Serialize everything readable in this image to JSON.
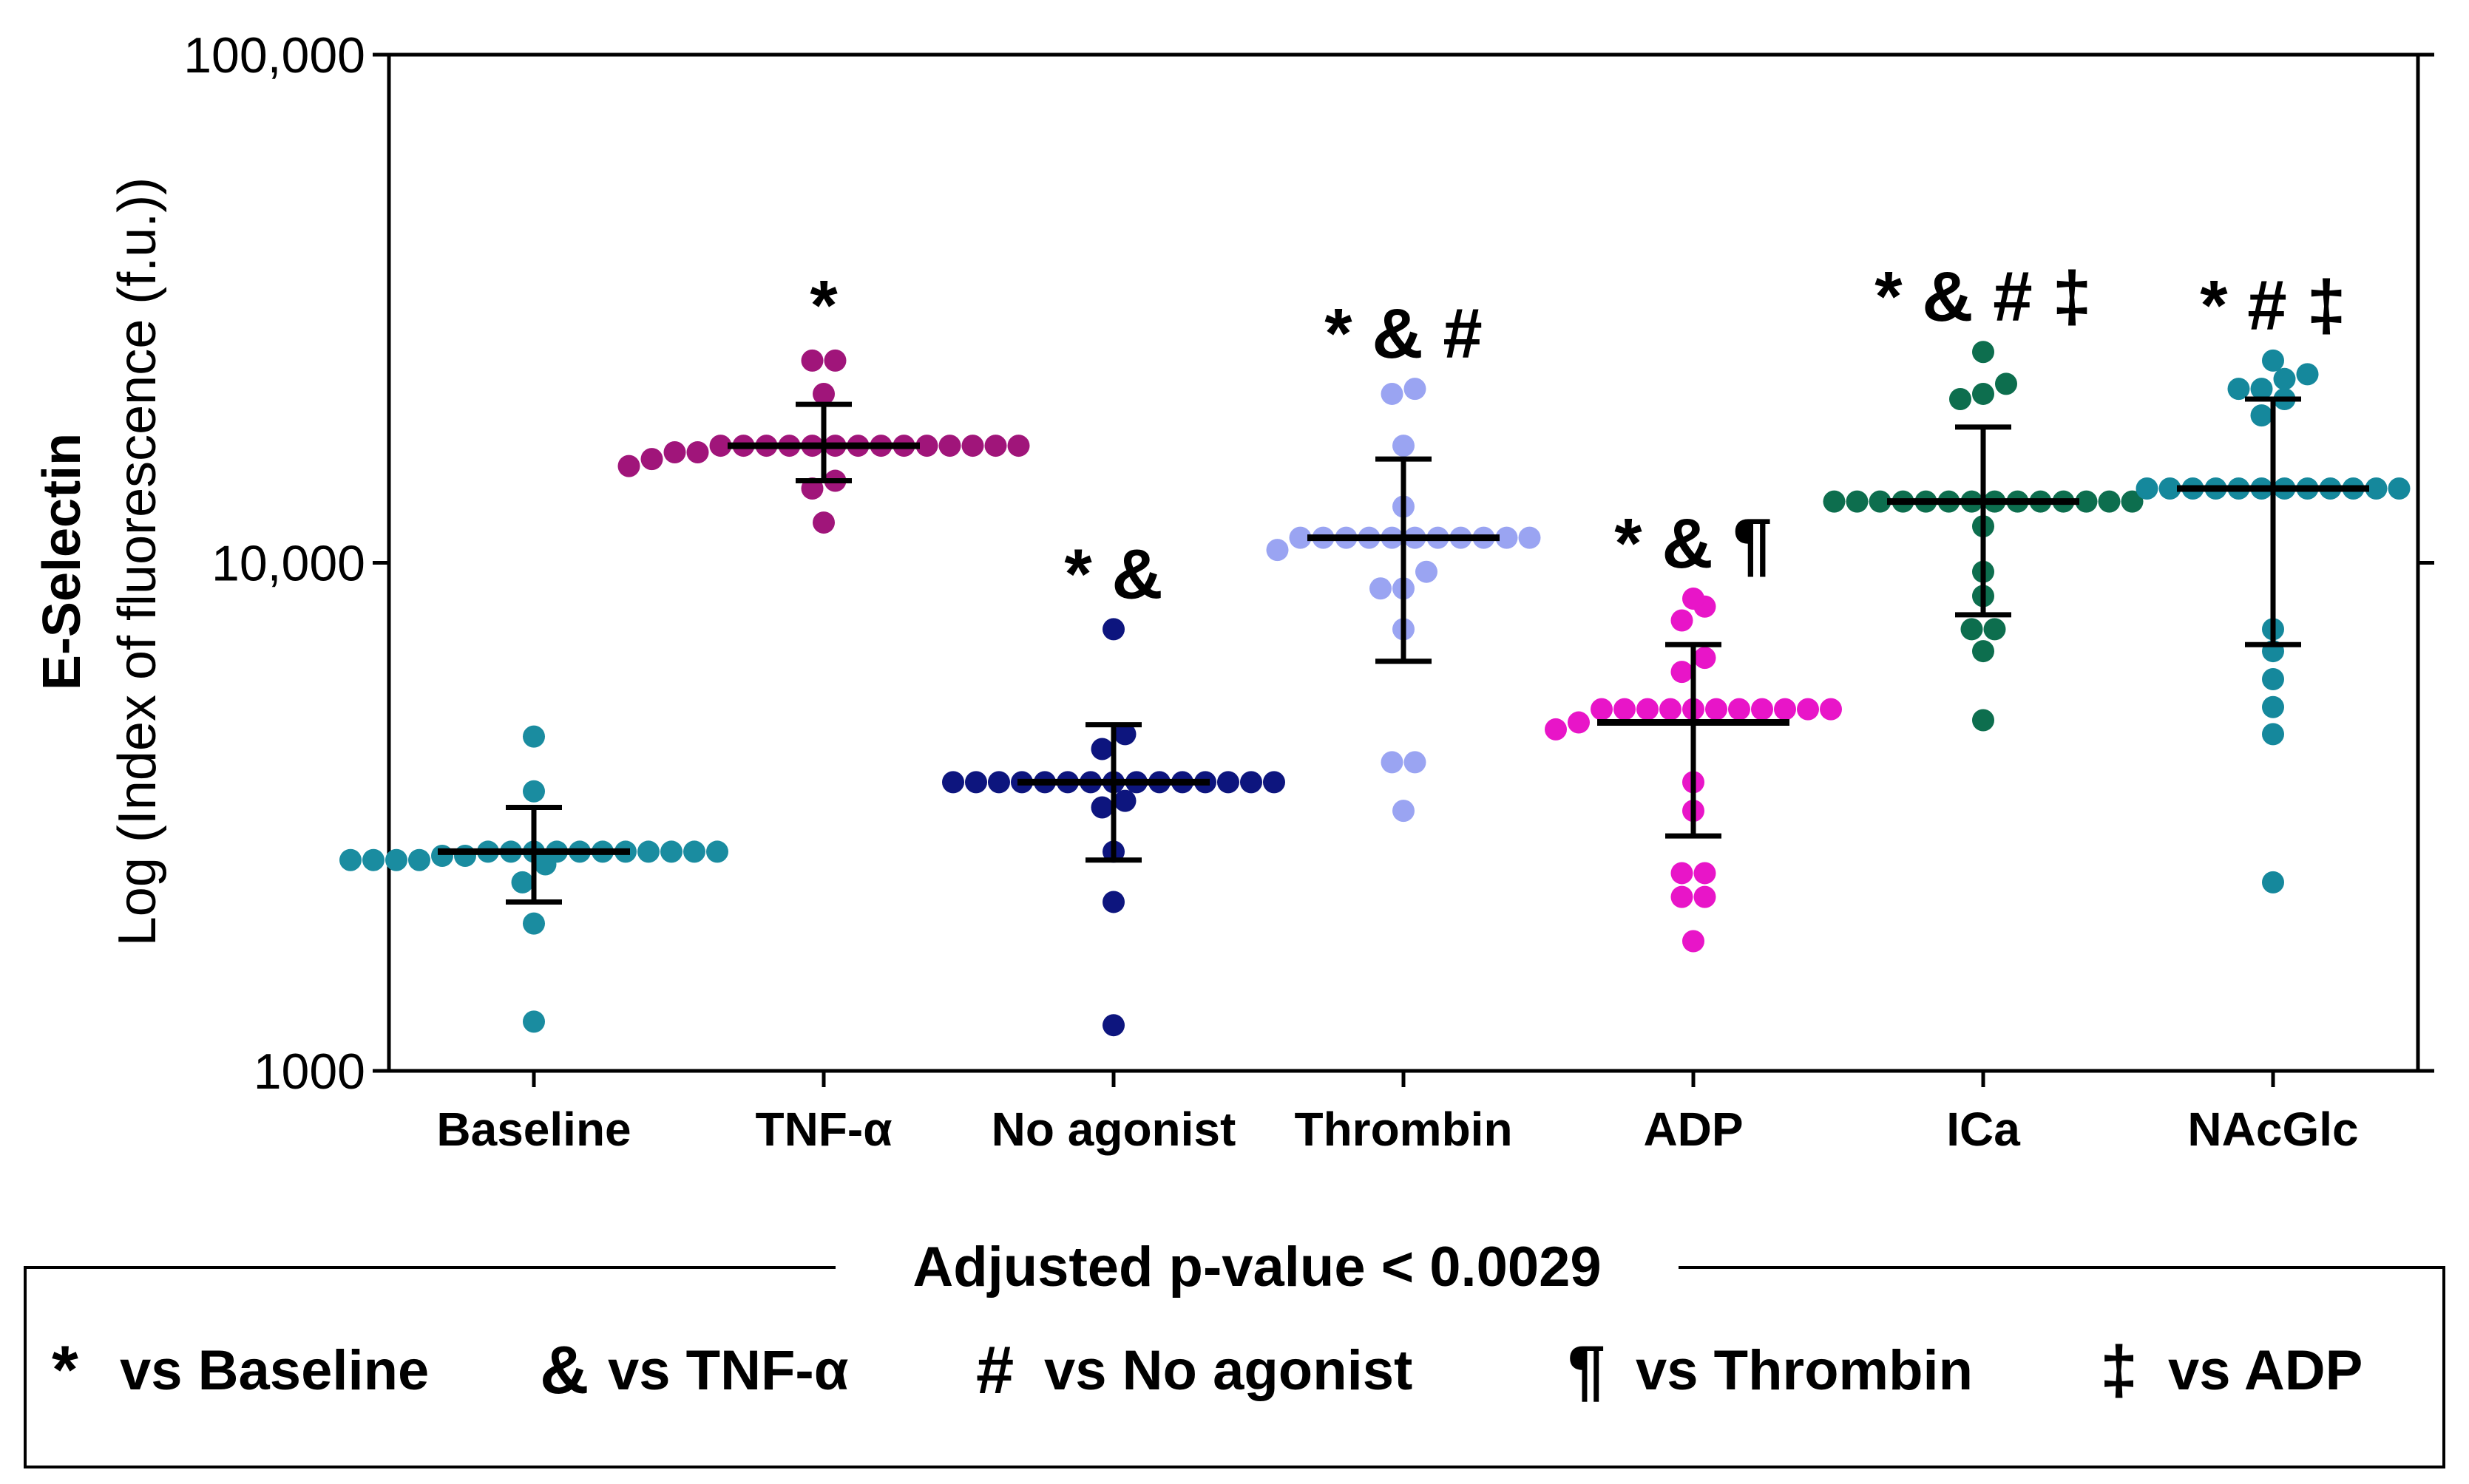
{
  "chart_data": {
    "type": "scatter",
    "subtype": "dot-plot-with-mean-and-sd",
    "title": "",
    "ylabel_bold": "E-Selectin",
    "ylabel": "Log (Index of fluorescence (f.u.))",
    "xlabel": "",
    "yscale": "log",
    "ylim": [
      1000,
      100000
    ],
    "yticks": [
      {
        "value": 1000,
        "label": "1000"
      },
      {
        "value": 10000,
        "label": "10,000"
      },
      {
        "value": 100000,
        "label": "100,000"
      }
    ],
    "categories": [
      "Baseline",
      "TNF-α",
      "No agonist",
      "Thrombin",
      "ADP",
      "ICa",
      "NAcGlc"
    ],
    "series": [
      {
        "name": "Baseline",
        "color": "#1a8ca0",
        "mean": 2700,
        "sd_low": 2150,
        "sd_high": 3300,
        "significance": "",
        "points": [
          1250,
          1950,
          2350,
          2550,
          2600,
          2600,
          2600,
          2600,
          2650,
          2650,
          2700,
          2700,
          2700,
          2700,
          2700,
          2700,
          2700,
          2700,
          2700,
          2700,
          2700,
          3550,
          4550
        ]
      },
      {
        "name": "TNF-α",
        "color": "#a0157a",
        "mean": 17000,
        "sd_low": 14500,
        "sd_high": 20500,
        "significance": "*",
        "points": [
          12000,
          14000,
          14500,
          15500,
          16000,
          16500,
          16500,
          17000,
          17000,
          17000,
          17000,
          17000,
          17000,
          17000,
          17000,
          17000,
          17000,
          17000,
          17000,
          17000,
          17000,
          21500,
          25000,
          25000
        ]
      },
      {
        "name": "No agonist",
        "color": "#0d157e",
        "mean": 3700,
        "sd_low": 2600,
        "sd_high": 4800,
        "significance": "* &",
        "points": [
          1230,
          2150,
          2700,
          3300,
          3400,
          3700,
          3700,
          3700,
          3700,
          3700,
          3700,
          3700,
          3700,
          3700,
          3700,
          3700,
          3700,
          3700,
          3700,
          3700,
          4300,
          4600,
          7400
        ]
      },
      {
        "name": "Thrombin",
        "color": "#9aa4f2",
        "mean": 11200,
        "sd_low": 6400,
        "sd_high": 16000,
        "significance": "* & #",
        "points": [
          3250,
          4050,
          4050,
          7400,
          8900,
          8900,
          9600,
          10600,
          11200,
          11200,
          11200,
          11200,
          11200,
          11200,
          11200,
          11200,
          11200,
          11200,
          11200,
          12900,
          17000,
          21500,
          22000
        ]
      },
      {
        "name": "ADP",
        "color": "#e815c8",
        "mean": 4850,
        "sd_low": 2900,
        "sd_high": 6900,
        "significance": "* & ¶",
        "points": [
          1800,
          2200,
          2200,
          2450,
          2450,
          3250,
          3700,
          4700,
          4850,
          5150,
          5150,
          5150,
          5150,
          5150,
          5150,
          5150,
          5150,
          5150,
          5150,
          5150,
          6100,
          6500,
          7700,
          8200,
          8500
        ]
      },
      {
        "name": "ICa",
        "color": "#0d6e4e",
        "mean": 13200,
        "sd_low": 7900,
        "sd_high": 18500,
        "significance": "* & # ‡",
        "points": [
          4900,
          6700,
          7400,
          7400,
          8600,
          9600,
          11800,
          13200,
          13200,
          13200,
          13200,
          13200,
          13200,
          13200,
          13200,
          13200,
          13200,
          13200,
          13200,
          13200,
          13200,
          21000,
          21500,
          22500,
          26000
        ]
      },
      {
        "name": "NAcGlc",
        "color": "#15889c",
        "mean": 14000,
        "sd_low": 6900,
        "sd_high": 21000,
        "significance": "* # ‡",
        "points": [
          2350,
          4600,
          5200,
          5900,
          6700,
          7400,
          14000,
          14000,
          14000,
          14000,
          14000,
          14000,
          14000,
          14000,
          14000,
          14000,
          14000,
          14000,
          19500,
          21000,
          22000,
          22000,
          23000,
          23500,
          25000
        ]
      }
    ],
    "legend": {
      "title": "Adjusted p-value < 0.0029",
      "placement": "bottom",
      "items": [
        {
          "symbol": "*",
          "label": "vs Baseline"
        },
        {
          "symbol": "&",
          "label": "vs TNF-α"
        },
        {
          "symbol": "#",
          "label": "vs No agonist"
        },
        {
          "symbol": "¶",
          "label": "vs Thrombin"
        },
        {
          "symbol": "‡",
          "label": "vs ADP"
        }
      ]
    }
  }
}
